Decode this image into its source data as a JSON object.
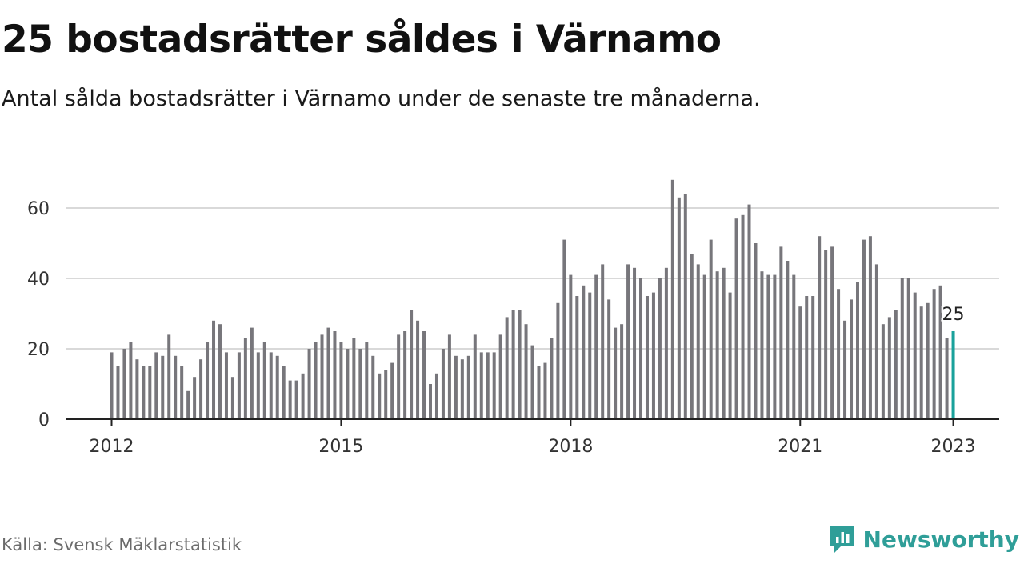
{
  "header": {
    "title": "25 bostadsrätter såldes i Värnamo",
    "subtitle": "Antal sålda bostadsrätter i Värnamo under de senaste tre månaderna."
  },
  "footer": {
    "source": "Källa: Svensk Mäklarstatistik",
    "brand": "Newsworthy"
  },
  "colors": {
    "bar": "#77767b",
    "highlight": "#1aa19b",
    "grid": "#d9d9d9",
    "axis": "#222222",
    "brand": "#2f9e98"
  },
  "chart_data": {
    "type": "bar",
    "title": "25 bostadsrätter såldes i Värnamo",
    "subtitle": "Antal sålda bostadsrätter i Värnamo under de senaste tre månaderna.",
    "xlabel": "",
    "ylabel": "",
    "ylim": [
      0,
      70
    ],
    "y_ticks": [
      0,
      20,
      40,
      60
    ],
    "x_ticks": [
      "2012",
      "2015",
      "2018",
      "2021",
      "2023"
    ],
    "x_tick_months": [
      "2012-01",
      "2015-01",
      "2018-01",
      "2021-01",
      "2023-01"
    ],
    "grid": true,
    "start_month": "2012-01",
    "end_month": "2023-01",
    "values": [
      19,
      15,
      20,
      22,
      17,
      15,
      15,
      19,
      18,
      24,
      18,
      15,
      8,
      12,
      17,
      22,
      28,
      27,
      19,
      12,
      19,
      23,
      26,
      19,
      22,
      19,
      18,
      15,
      11,
      11,
      13,
      20,
      22,
      24,
      26,
      25,
      22,
      20,
      23,
      20,
      22,
      18,
      13,
      14,
      16,
      24,
      25,
      31,
      28,
      25,
      10,
      13,
      20,
      24,
      18,
      17,
      18,
      24,
      19,
      19,
      19,
      24,
      29,
      31,
      31,
      27,
      21,
      15,
      16,
      23,
      33,
      51,
      41,
      35,
      38,
      36,
      41,
      44,
      34,
      26,
      27,
      44,
      43,
      40,
      35,
      36,
      40,
      43,
      68,
      63,
      64,
      47,
      44,
      41,
      51,
      42,
      43,
      36,
      57,
      58,
      61,
      50,
      42,
      41,
      41,
      49,
      45,
      41,
      32,
      35,
      35,
      52,
      48,
      49,
      37,
      28,
      34,
      39,
      51,
      52,
      44,
      27,
      29,
      31,
      40,
      40,
      36,
      32,
      33,
      37,
      38,
      23,
      25
    ],
    "highlight_index": 132,
    "highlight_label": "25"
  }
}
